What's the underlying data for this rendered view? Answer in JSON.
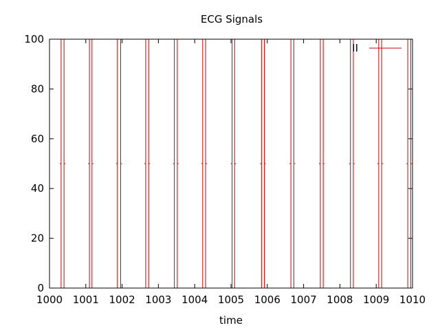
{
  "chart_data": {
    "type": "line",
    "title": "ECG Signals",
    "xlabel": "time",
    "ylabel": "",
    "xlim": [
      1000,
      1010
    ],
    "ylim": [
      0,
      100
    ],
    "xticks": [
      "1000",
      "1001",
      "1002",
      "1003",
      "1004",
      "1005",
      "1006",
      "1007",
      "1008",
      "1009",
      "1010"
    ],
    "yticks": [
      "0",
      "20",
      "40",
      "60",
      "80",
      "100"
    ],
    "legend_position": "top-right",
    "grid": false,
    "series": [
      {
        "name": "II",
        "color": "#cc0000",
        "beats": [
          {
            "rise": 1000.32,
            "fall": 1000.4
          },
          {
            "rise": 1001.1,
            "fall": 1001.17
          },
          {
            "rise": 1001.87,
            "fall": 1001.96
          },
          {
            "rise": 1002.65,
            "fall": 1002.73
          },
          {
            "rise": 1003.44,
            "fall": 1003.52
          },
          {
            "rise": 1004.22,
            "fall": 1004.3
          },
          {
            "rise": 1005.03,
            "fall": 1005.1
          },
          {
            "rise": 1005.84,
            "fall": 1005.92
          },
          {
            "rise": 1006.65,
            "fall": 1006.73
          },
          {
            "rise": 1007.46,
            "fall": 1007.54
          },
          {
            "rise": 1008.29,
            "fall": 1008.37
          },
          {
            "rise": 1009.07,
            "fall": 1009.15
          },
          {
            "rise": 1009.87,
            "fall": 1009.95
          }
        ],
        "baseline": 0,
        "peak": 100,
        "mid": 50
      }
    ]
  }
}
